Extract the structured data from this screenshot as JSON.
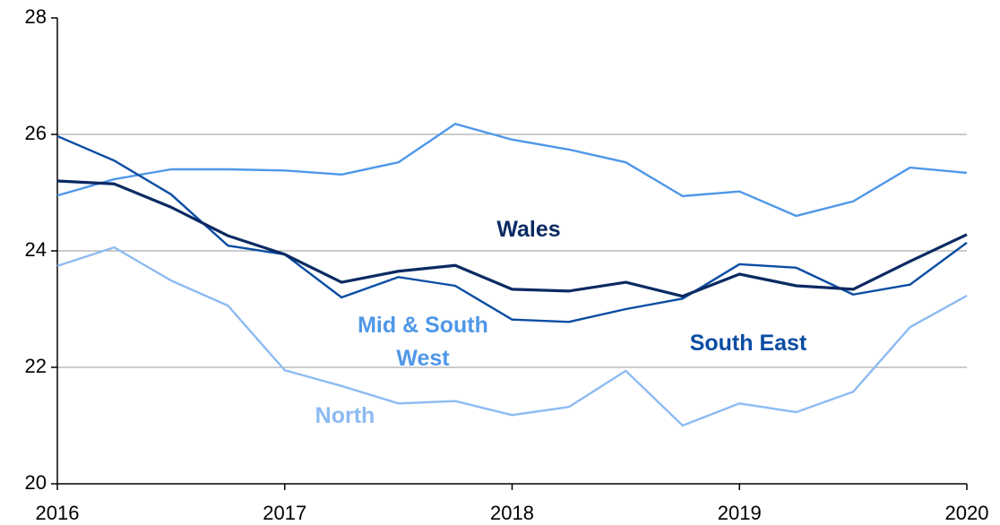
{
  "chart_data": {
    "type": "line",
    "x": [
      2016,
      2016.25,
      2016.5,
      2016.75,
      2017,
      2017.25,
      2017.5,
      2017.75,
      2018,
      2018.25,
      2018.5,
      2018.75,
      2019,
      2019.25,
      2019.5,
      2019.75,
      2020
    ],
    "series": [
      {
        "name": "Mid & South West",
        "color": "#4f97e8",
        "values": [
          24.95,
          25.23,
          25.4,
          25.4,
          25.38,
          25.31,
          25.52,
          26.18,
          25.91,
          25.74,
          25.52,
          24.94,
          25.02,
          24.6,
          24.85,
          25.43,
          25.34
        ]
      },
      {
        "name": "North",
        "color": "#8dbbf2",
        "values": [
          23.74,
          24.06,
          23.49,
          23.06,
          21.95,
          21.68,
          21.38,
          21.42,
          21.18,
          21.32,
          21.94,
          21.0,
          21.38,
          21.23,
          21.58,
          22.69,
          23.23
        ]
      },
      {
        "name": "South East",
        "color": "#0a4da3",
        "values": [
          25.97,
          25.55,
          24.97,
          24.09,
          23.94,
          23.2,
          23.55,
          23.4,
          22.82,
          22.78,
          23.0,
          23.18,
          23.77,
          23.71,
          23.25,
          23.42,
          24.14
        ]
      },
      {
        "name": "Wales",
        "color": "#0b2a63",
        "values": [
          25.2,
          25.15,
          24.75,
          24.26,
          23.94,
          23.46,
          23.65,
          23.75,
          23.34,
          23.31,
          23.46,
          23.22,
          23.6,
          23.4,
          23.34,
          23.82,
          24.28
        ]
      }
    ],
    "xlim": [
      2016,
      2020
    ],
    "xticks": [
      2016,
      2017,
      2018,
      2019,
      2020
    ],
    "ylim": [
      20,
      28
    ],
    "yticks": [
      20,
      22,
      24,
      26,
      28
    ],
    "grid": true
  }
}
